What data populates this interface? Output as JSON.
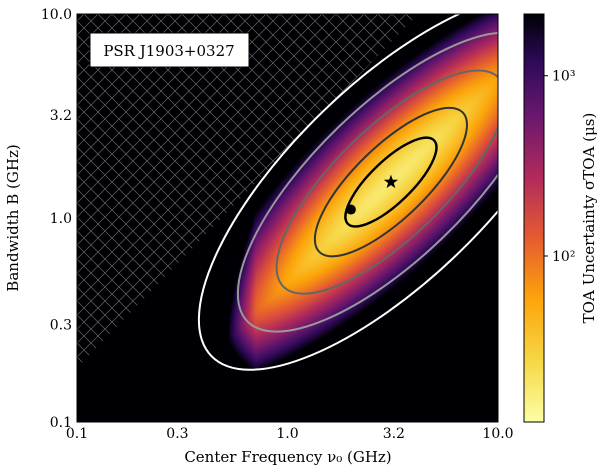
{
  "chart_data": {
    "type": "heatmap",
    "xlabel": "Center Frequency ν₀ (GHz)",
    "ylabel": "Bandwidth B (GHz)",
    "colorbar_label": "TOA Uncertainty σTOA (μs)",
    "x_scale": "log",
    "y_scale": "log",
    "xlim": [
      0.1,
      10.0
    ],
    "ylim": [
      0.1,
      10.0
    ],
    "x_ticks": [
      {
        "value": 0.1,
        "label": "0.1"
      },
      {
        "value": 0.3,
        "label": "0.3"
      },
      {
        "value": 1.0,
        "label": "1.0"
      },
      {
        "value": 3.2,
        "label": "3.2"
      },
      {
        "value": 10.0,
        "label": "10.0"
      }
    ],
    "y_ticks": [
      {
        "value": 0.1,
        "label": "0.1"
      },
      {
        "value": 0.3,
        "label": "0.3"
      },
      {
        "value": 1.0,
        "label": "1.0"
      },
      {
        "value": 3.2,
        "label": "3.2"
      },
      {
        "value": 10.0,
        "label": "10.0"
      }
    ],
    "colorbar": {
      "scale": "log",
      "range": [
        12,
        2200
      ],
      "ticks": [
        {
          "value": 100,
          "label": "10²"
        },
        {
          "value": 1000,
          "label": "10³"
        }
      ],
      "colormap": "inferno_r"
    },
    "annotation": "PSR J1903+0327",
    "excluded_region": "hatched where B > 2ν₀",
    "optimum_star": {
      "x": 3.1,
      "y": 1.5
    },
    "marker_dot": {
      "x": 2.0,
      "y": 1.1
    },
    "contours": [
      {
        "color": "#000000",
        "level": "innermost"
      },
      {
        "color": "#333333",
        "level": "second"
      },
      {
        "color": "#666666",
        "level": "third"
      },
      {
        "color": "#999999",
        "level": "fourth"
      },
      {
        "color": "#ffffff",
        "level": "outermost"
      }
    ]
  }
}
